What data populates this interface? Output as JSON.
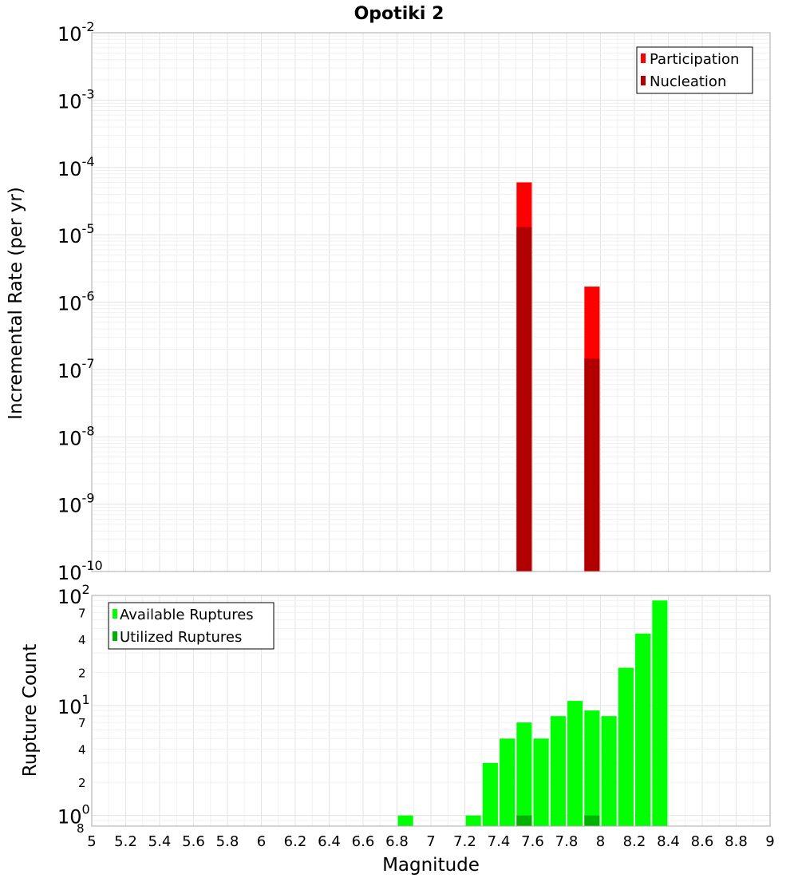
{
  "chart_data": [
    {
      "type": "bar",
      "title": "Opotiki 2",
      "ylabel": "Incremental Rate (per yr)",
      "xlabel": "",
      "y_scale": "log",
      "ylim": [
        1e-10,
        0.01
      ],
      "xlim": [
        5,
        9
      ],
      "y_ticks": [
        "10^-10",
        "10^-9",
        "10^-8",
        "10^-7",
        "10^-6",
        "10^-5",
        "10^-4",
        "10^-3",
        "10^-2"
      ],
      "bar_width": 0.09,
      "legend_position": "top-right",
      "grid": true,
      "series": [
        {
          "name": "Participation",
          "color": "#ff0000",
          "x": [
            7.55,
            7.95
          ],
          "values": [
            6e-05,
            1.7e-06
          ]
        },
        {
          "name": "Nucleation",
          "color": "#b20000",
          "x": [
            7.55,
            7.95
          ],
          "values": [
            1.3e-05,
            1.45e-07
          ]
        }
      ]
    },
    {
      "type": "bar",
      "title": "",
      "ylabel": "Rupture Count",
      "xlabel": "Magnitude",
      "y_scale": "log",
      "ylim": [
        0.8,
        100
      ],
      "xlim": [
        5,
        9
      ],
      "x_ticks": [
        "5",
        "5.2",
        "5.4",
        "5.6",
        "5.8",
        "6",
        "6.2",
        "6.4",
        "6.6",
        "6.8",
        "7",
        "7.2",
        "7.4",
        "7.6",
        "7.8",
        "8",
        "8.2",
        "8.4",
        "8.6",
        "8.8",
        "9"
      ],
      "y_major_ticks": [
        {
          "value": 1,
          "base": "10",
          "exp": "0"
        },
        {
          "value": 10,
          "base": "10",
          "exp": "1"
        },
        {
          "value": 100,
          "base": "10",
          "exp": "2"
        }
      ],
      "y_minor_ticks": [
        {
          "value": 0.8,
          "label": "8"
        },
        {
          "value": 2,
          "label": "2"
        },
        {
          "value": 4,
          "label": "4"
        },
        {
          "value": 7,
          "label": "7"
        },
        {
          "value": 20,
          "label": "2"
        },
        {
          "value": 40,
          "label": "4"
        },
        {
          "value": 70,
          "label": "7"
        }
      ],
      "bar_width": 0.09,
      "legend_position": "top-left",
      "grid": true,
      "series": [
        {
          "name": "Available Ruptures",
          "color": "#00ff00",
          "x": [
            6.85,
            7.25,
            7.35,
            7.45,
            7.55,
            7.65,
            7.75,
            7.85,
            7.95,
            8.05,
            8.15,
            8.25,
            8.35
          ],
          "values": [
            1,
            1,
            3,
            5,
            7,
            5,
            8,
            11,
            9,
            8,
            22,
            45,
            90
          ]
        },
        {
          "name": "Utilized Ruptures",
          "color": "#00b200",
          "x": [
            7.55,
            7.95
          ],
          "values": [
            1,
            1
          ]
        }
      ]
    }
  ]
}
